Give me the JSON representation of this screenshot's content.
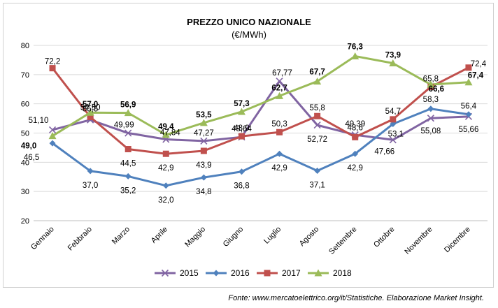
{
  "source_note": "Fonte: www.mercatoelettrico.org/it/Statistiche. Elaborazione Market Insight.",
  "chart_data": {
    "type": "line",
    "title": "PREZZO UNICO NAZIONALE",
    "subtitle": "(€/MWh)",
    "xlabel": "",
    "ylabel": "",
    "ylim": [
      20,
      80
    ],
    "yticks": [
      20,
      30,
      40,
      50,
      60,
      70,
      80
    ],
    "grid": true,
    "legend_position": "bottom",
    "categories": [
      "Gennaio",
      "Febbraio",
      "Marzo",
      "Aprile",
      "Maggio",
      "Giugno",
      "Luglio",
      "Agosto",
      "Settembre",
      "Ottobre",
      "Novembre",
      "Dicembre"
    ],
    "series": [
      {
        "name": "2015",
        "color": "#8064a2",
        "marker": "x",
        "values": [
          51.1,
          54.5,
          49.99,
          47.84,
          47.27,
          48.64,
          67.77,
          52.72,
          49.39,
          47.66,
          55.08,
          55.66
        ],
        "labels": [
          "51,10",
          "54,50",
          "49,99",
          "47,84",
          "47,27",
          "48,64",
          "67,77",
          "52,72",
          "49,39",
          "47,66",
          "55,08",
          "55,66"
        ],
        "bold": false
      },
      {
        "name": "2016",
        "color": "#4f81bd",
        "marker": "diamond",
        "values": [
          46.5,
          37.0,
          35.2,
          32.0,
          34.8,
          36.8,
          42.9,
          37.1,
          42.9,
          53.1,
          58.3,
          56.4
        ],
        "labels": [
          "46,5",
          "37,0",
          "35,2",
          "32,0",
          "34,8",
          "36,8",
          "42,9",
          "37,1",
          "42,9",
          "53,1",
          "58,3",
          "56,4"
        ],
        "bold": false
      },
      {
        "name": "2017",
        "color": "#c0504d",
        "marker": "square",
        "values": [
          72.2,
          55.5,
          44.5,
          42.9,
          43.9,
          48.9,
          50.3,
          55.8,
          48.6,
          54.7,
          65.8,
          72.4
        ],
        "labels": [
          "72,2",
          "55,5",
          "44,5",
          "42,9",
          "43,9",
          "48,9",
          "50,3",
          "55,8",
          "48,6",
          "54,7",
          "65,8",
          "72,4"
        ],
        "bold": false
      },
      {
        "name": "2018",
        "color": "#9bbb59",
        "marker": "triangle",
        "values": [
          49.0,
          57.0,
          56.9,
          49.4,
          53.5,
          57.3,
          62.7,
          67.7,
          76.3,
          73.9,
          66.6,
          67.4
        ],
        "labels": [
          "49,0",
          "57,0",
          "56,9",
          "49,4",
          "53,5",
          "57,3",
          "62,7",
          "67,7",
          "76,3",
          "73,9",
          "66,6",
          "67,4"
        ],
        "bold": true
      }
    ]
  }
}
